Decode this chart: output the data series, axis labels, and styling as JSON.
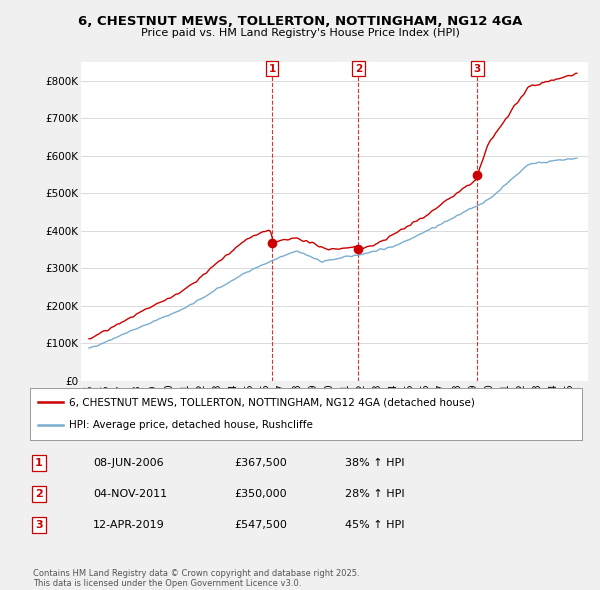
{
  "title": "6, CHESTNUT MEWS, TOLLERTON, NOTTINGHAM, NG12 4GA",
  "subtitle": "Price paid vs. HM Land Registry's House Price Index (HPI)",
  "ylim": [
    0,
    850000
  ],
  "yticks": [
    0,
    100000,
    200000,
    300000,
    400000,
    500000,
    600000,
    700000,
    800000
  ],
  "ytick_labels": [
    "£0",
    "£100K",
    "£200K",
    "£300K",
    "£400K",
    "£500K",
    "£600K",
    "£700K",
    "£800K"
  ],
  "sale_color": "#cc0000",
  "hpi_color": "#7aadcf",
  "vline_color": "#cc0000",
  "legend_sale": "6, CHESTNUT MEWS, TOLLERTON, NOTTINGHAM, NG12 4GA (detached house)",
  "legend_hpi": "HPI: Average price, detached house, Rushcliffe",
  "sale_dates": [
    2006.44,
    2011.84,
    2019.28
  ],
  "sale_prices": [
    367500,
    350000,
    547500
  ],
  "sale_labels": [
    "1",
    "2",
    "3"
  ],
  "table_rows": [
    [
      "1",
      "08-JUN-2006",
      "£367,500",
      "38% ↑ HPI"
    ],
    [
      "2",
      "04-NOV-2011",
      "£350,000",
      "28% ↑ HPI"
    ],
    [
      "3",
      "12-APR-2019",
      "£547,500",
      "45% ↑ HPI"
    ]
  ],
  "footer": "Contains HM Land Registry data © Crown copyright and database right 2025.\nThis data is licensed under the Open Government Licence v3.0.",
  "background_color": "#f0f0f0",
  "plot_bg_color": "#ffffff"
}
